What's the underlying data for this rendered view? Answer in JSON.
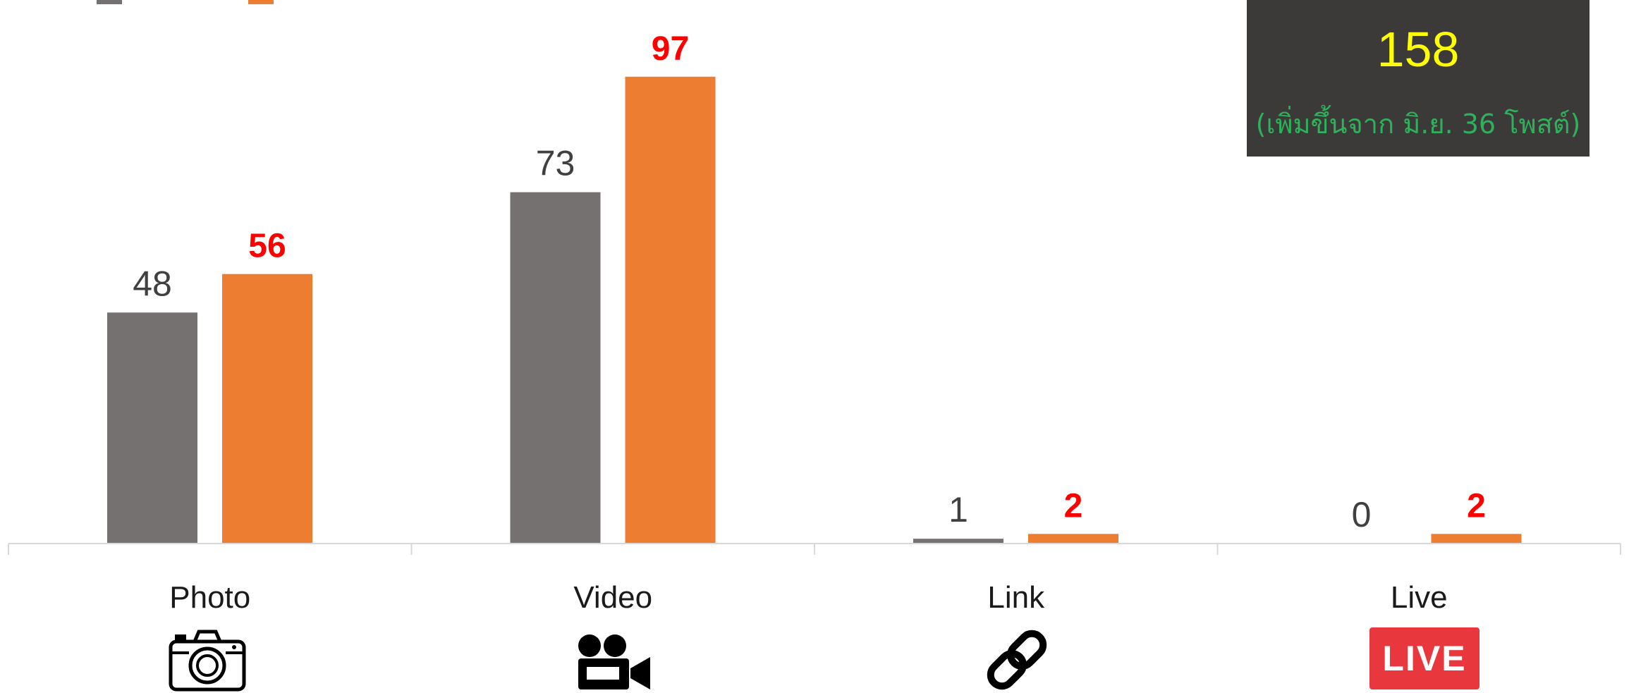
{
  "chart_data": {
    "type": "bar",
    "categories": [
      "Photo",
      "Video",
      "Link",
      "Live"
    ],
    "series": [
      {
        "values": [
          48,
          73,
          1,
          0
        ],
        "color": "#767171"
      },
      {
        "values": [
          56,
          97,
          2,
          2
        ],
        "color": "#ed7d31"
      }
    ],
    "label_colors": {
      "previous": "#404040",
      "current": "#ff0000"
    },
    "ylim": [
      0,
      110
    ],
    "grid": false
  },
  "summary": {
    "total": "158",
    "note": "(เพิ่มขึ้นจาก มิ.ย. 36 โพสต์)",
    "background": "#3b3a38",
    "total_color": "#ffff00",
    "note_color": "#2fb05a"
  },
  "icons": [
    "camera-icon",
    "video-camera-icon",
    "link-icon",
    "live-icon"
  ],
  "live_badge": "LIVE"
}
